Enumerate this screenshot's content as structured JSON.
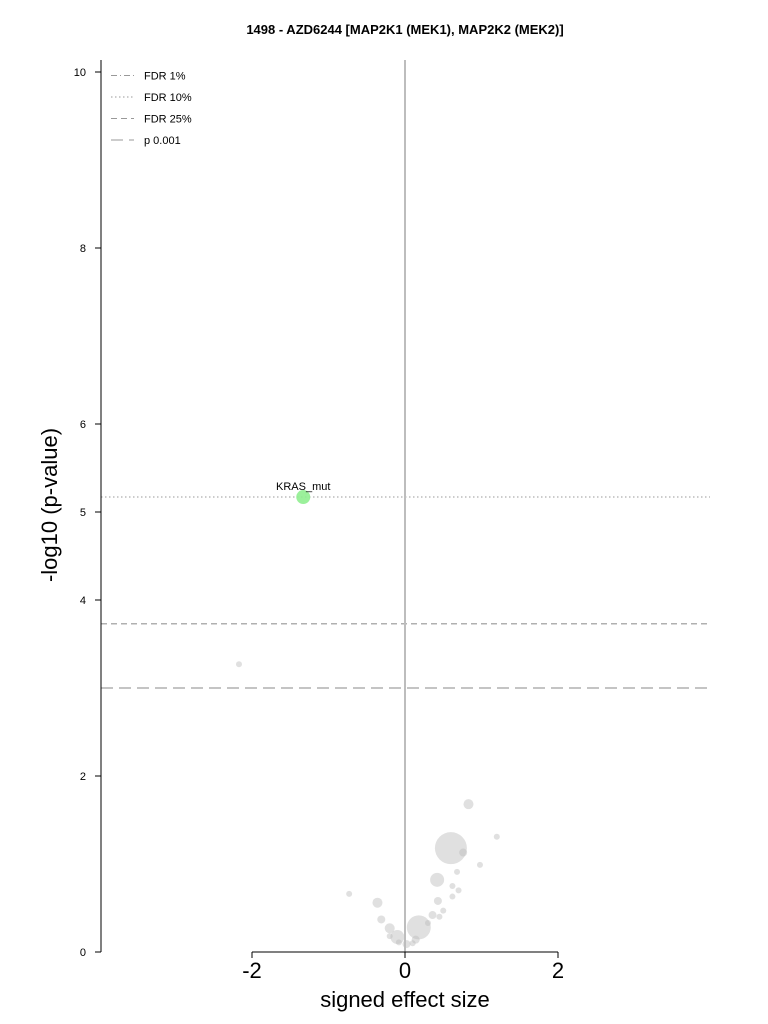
{
  "chart_data": {
    "type": "scatter",
    "title": "1498 - AZD6244 [MAP2K1 (MEK1), MAP2K2 (MEK2)]",
    "xlabel": "signed effect size",
    "ylabel": "-log10 (p-value)",
    "xlim": [
      -2.0,
      2.0
    ],
    "ylim": [
      0,
      10
    ],
    "xticks": [
      "-2",
      "0",
      "2"
    ],
    "yticks": [
      "0",
      "2",
      "4",
      "5",
      "6",
      "8",
      "10"
    ],
    "grid": false,
    "legend_position": "top-left",
    "thresholds": [
      {
        "name": "FDR 1%",
        "style": "dashdot",
        "y": null
      },
      {
        "name": "FDR 10%",
        "style": "dotted",
        "y": 5.17
      },
      {
        "name": "FDR 25%",
        "style": "dashed",
        "y": 3.73
      },
      {
        "name": "p 0.001",
        "style": "longdash",
        "y": 3.0
      }
    ],
    "highlight_color": "#90ee90",
    "background_point_color": "#bbbbbb",
    "points": [
      {
        "x": -1.33,
        "y": 5.17,
        "size": 7,
        "label": "KRAS_mut",
        "highlight": true
      },
      {
        "x": -2.17,
        "y": 3.27,
        "size": 3
      },
      {
        "x": 0.83,
        "y": 1.68,
        "size": 5
      },
      {
        "x": 1.2,
        "y": 1.31,
        "size": 3
      },
      {
        "x": 0.6,
        "y": 1.18,
        "size": 16
      },
      {
        "x": 0.76,
        "y": 1.13,
        "size": 4
      },
      {
        "x": 0.98,
        "y": 0.99,
        "size": 3
      },
      {
        "x": 0.68,
        "y": 0.91,
        "size": 3
      },
      {
        "x": 0.42,
        "y": 0.82,
        "size": 7
      },
      {
        "x": 0.62,
        "y": 0.75,
        "size": 3
      },
      {
        "x": 0.7,
        "y": 0.7,
        "size": 3
      },
      {
        "x": -0.73,
        "y": 0.66,
        "size": 3
      },
      {
        "x": 0.62,
        "y": 0.63,
        "size": 3
      },
      {
        "x": -0.36,
        "y": 0.56,
        "size": 5
      },
      {
        "x": 0.43,
        "y": 0.58,
        "size": 4
      },
      {
        "x": 0.5,
        "y": 0.47,
        "size": 3
      },
      {
        "x": 0.36,
        "y": 0.42,
        "size": 4
      },
      {
        "x": -0.31,
        "y": 0.37,
        "size": 4
      },
      {
        "x": 0.45,
        "y": 0.4,
        "size": 3
      },
      {
        "x": 0.3,
        "y": 0.33,
        "size": 3
      },
      {
        "x": 0.18,
        "y": 0.28,
        "size": 12
      },
      {
        "x": -0.2,
        "y": 0.27,
        "size": 5
      },
      {
        "x": -0.1,
        "y": 0.17,
        "size": 7
      },
      {
        "x": -0.2,
        "y": 0.18,
        "size": 3
      },
      {
        "x": 0.14,
        "y": 0.14,
        "size": 4
      },
      {
        "x": -0.08,
        "y": 0.11,
        "size": 3
      },
      {
        "x": 0.02,
        "y": 0.09,
        "size": 4
      },
      {
        "x": 0.1,
        "y": 0.1,
        "size": 3
      }
    ]
  }
}
